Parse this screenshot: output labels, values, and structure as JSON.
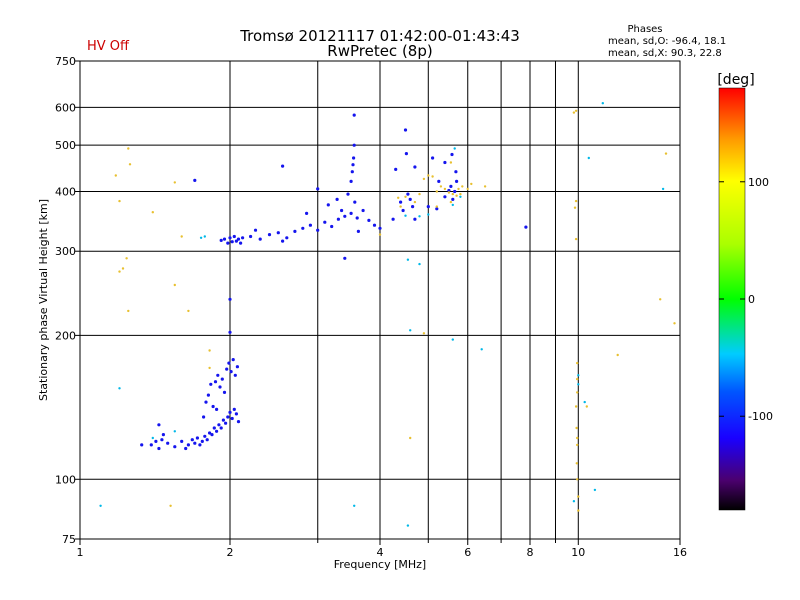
{
  "header": {
    "title_line1": "Tromsø 20121117 01:42:00-01:43:43",
    "title_line2": "RwPretec (8p)",
    "status": "HV Off",
    "status_color": "#cc0000",
    "phases_title": "Phases",
    "phases_o": "mean, sd,O: -96.4, 18.1",
    "phases_x": "mean, sd,X:  90.3, 22.8"
  },
  "colorbar": {
    "unit_label": "[deg]",
    "ticks": [
      {
        "label": "100",
        "value": 100
      },
      {
        "label": "0",
        "value": 0
      },
      {
        "label": "-100",
        "value": -100
      }
    ],
    "range": [
      -180,
      180
    ]
  },
  "chart_data": {
    "type": "scatter",
    "xlabel": "Frequency [MHz]",
    "ylabel": "Stationary phase Virtual Height [km]",
    "xscale": "log",
    "yscale": "log",
    "xlim": [
      1,
      16
    ],
    "ylim": [
      75,
      750
    ],
    "grid": true,
    "x_ticks": [
      {
        "value": 1,
        "label": "1"
      },
      {
        "value": 2,
        "label": "2"
      },
      {
        "value": 4,
        "label": "4"
      },
      {
        "value": 6,
        "label": "6"
      },
      {
        "value": 8,
        "label": "8"
      },
      {
        "value": 10,
        "label": "10"
      },
      {
        "value": 16,
        "label": "16"
      }
    ],
    "x_minor": [
      3,
      5,
      7,
      9
    ],
    "y_ticks": [
      {
        "value": 75,
        "label": "75"
      },
      {
        "value": 100,
        "label": "100"
      },
      {
        "value": 200,
        "label": "200"
      },
      {
        "value": 300,
        "label": "300"
      },
      {
        "value": 400,
        "label": "400"
      },
      {
        "value": 500,
        "label": "500"
      },
      {
        "value": 600,
        "label": "600"
      },
      {
        "value": 750,
        "label": "750"
      }
    ],
    "series": [
      {
        "points": [
          [
            1.39,
            118
          ],
          [
            1.42,
            120
          ],
          [
            1.44,
            116
          ],
          [
            1.46,
            121
          ],
          [
            1.5,
            119
          ],
          [
            1.55,
            117
          ],
          [
            1.6,
            120
          ],
          [
            1.63,
            116
          ],
          [
            1.65,
            118
          ],
          [
            1.68,
            121
          ],
          [
            1.7,
            119
          ],
          [
            1.72,
            122
          ],
          [
            1.74,
            118
          ],
          [
            1.76,
            120
          ],
          [
            1.78,
            123
          ],
          [
            1.8,
            121
          ],
          [
            1.82,
            125
          ],
          [
            1.84,
            124
          ],
          [
            1.86,
            128
          ],
          [
            1.88,
            126
          ],
          [
            1.9,
            130
          ],
          [
            1.92,
            128
          ],
          [
            1.94,
            133
          ],
          [
            1.96,
            131
          ],
          [
            1.98,
            135
          ],
          [
            2.0,
            138
          ],
          [
            2.02,
            134
          ],
          [
            2.04,
            140
          ],
          [
            2.06,
            137
          ],
          [
            2.08,
            132
          ],
          [
            1.77,
            135
          ],
          [
            1.79,
            145
          ],
          [
            1.81,
            150
          ],
          [
            1.83,
            158
          ],
          [
            1.87,
            160
          ],
          [
            1.89,
            165
          ],
          [
            1.91,
            156
          ],
          [
            1.93,
            162
          ],
          [
            1.95,
            152
          ],
          [
            1.97,
            170
          ],
          [
            1.99,
            175
          ],
          [
            2.01,
            168
          ],
          [
            2.03,
            178
          ],
          [
            2.05,
            165
          ],
          [
            2.07,
            172
          ],
          [
            1.44,
            130
          ],
          [
            1.47,
            124
          ],
          [
            1.33,
            118
          ],
          [
            1.88,
            140
          ],
          [
            1.85,
            142
          ],
          [
            1.92,
            316
          ],
          [
            1.95,
            318
          ],
          [
            1.98,
            312
          ],
          [
            2.0,
            320
          ],
          [
            2.02,
            314
          ],
          [
            2.04,
            322
          ],
          [
            2.06,
            315
          ],
          [
            2.08,
            318
          ],
          [
            2.1,
            312
          ],
          [
            2.12,
            320
          ],
          [
            2.2,
            322
          ],
          [
            2.3,
            318
          ],
          [
            2.4,
            325
          ],
          [
            2.5,
            328
          ],
          [
            2.6,
            320
          ],
          [
            2.7,
            330
          ],
          [
            2.8,
            335
          ],
          [
            2.9,
            340
          ],
          [
            3.0,
            332
          ],
          [
            3.1,
            345
          ],
          [
            3.2,
            338
          ],
          [
            3.3,
            350
          ],
          [
            3.4,
            355
          ],
          [
            3.5,
            360
          ],
          [
            3.6,
            352
          ],
          [
            3.7,
            365
          ],
          [
            3.8,
            348
          ],
          [
            3.9,
            340
          ],
          [
            4.0,
            335
          ],
          [
            2.25,
            332
          ],
          [
            2.55,
            315
          ],
          [
            2.85,
            360
          ],
          [
            3.0,
            405
          ],
          [
            3.15,
            375
          ],
          [
            3.35,
            365
          ],
          [
            3.45,
            395
          ],
          [
            3.5,
            420
          ],
          [
            3.52,
            440
          ],
          [
            3.54,
            470
          ],
          [
            3.55,
            500
          ],
          [
            3.53,
            455
          ],
          [
            3.56,
            380
          ],
          [
            3.28,
            385
          ],
          [
            3.62,
            330
          ],
          [
            3.4,
            290
          ],
          [
            3.55,
            578
          ],
          [
            4.3,
            445
          ],
          [
            4.5,
            538
          ],
          [
            4.52,
            480
          ],
          [
            4.4,
            380
          ],
          [
            4.45,
            365
          ],
          [
            4.55,
            395
          ],
          [
            4.6,
            385
          ],
          [
            4.65,
            372
          ],
          [
            4.7,
            350
          ],
          [
            5.0,
            372
          ],
          [
            5.2,
            368
          ],
          [
            5.4,
            390
          ],
          [
            5.5,
            402
          ],
          [
            5.55,
            410
          ],
          [
            5.6,
            385
          ],
          [
            5.65,
            400
          ],
          [
            5.7,
            420
          ],
          [
            5.68,
            440
          ],
          [
            5.58,
            478
          ],
          [
            5.25,
            420
          ],
          [
            5.1,
            470
          ],
          [
            2.0,
            238
          ],
          [
            2.55,
            452
          ],
          [
            2.0,
            203
          ],
          [
            1.7,
            422
          ],
          [
            4.25,
            350
          ],
          [
            7.85,
            337
          ],
          [
            4.7,
            450
          ],
          [
            5.4,
            460
          ]
        ]
      },
      {
        "points": [
          [
            1.75,
            320
          ],
          [
            1.78,
            322
          ],
          [
            4.55,
            288
          ],
          [
            4.8,
            282
          ],
          [
            5.65,
            492
          ],
          [
            5.8,
            390
          ],
          [
            4.8,
            355
          ],
          [
            5.0,
            358
          ],
          [
            4.6,
            205
          ],
          [
            6.4,
            187
          ],
          [
            5.6,
            196
          ],
          [
            1.2,
            155
          ],
          [
            1.4,
            122
          ],
          [
            1.55,
            126
          ],
          [
            4.55,
            80
          ],
          [
            1.1,
            88
          ],
          [
            10.8,
            95
          ],
          [
            9.8,
            90
          ],
          [
            10.5,
            470
          ],
          [
            11.2,
            612
          ],
          [
            14.8,
            405
          ],
          [
            3.55,
            88
          ],
          [
            10.0,
            165
          ],
          [
            10.0,
            158
          ],
          [
            10.3,
            145
          ],
          [
            4.5,
            356
          ],
          [
            5.6,
            375
          ]
        ]
      },
      {
        "points": [
          [
            1.18,
            432
          ],
          [
            1.2,
            382
          ],
          [
            1.25,
            492
          ],
          [
            1.26,
            456
          ],
          [
            1.4,
            362
          ],
          [
            1.22,
            276
          ],
          [
            1.24,
            290
          ],
          [
            1.2,
            272
          ],
          [
            1.25,
            225
          ],
          [
            1.55,
            418
          ],
          [
            1.6,
            322
          ],
          [
            1.55,
            255
          ],
          [
            1.65,
            225
          ],
          [
            1.82,
            186
          ],
          [
            1.82,
            171
          ],
          [
            1.52,
            88
          ],
          [
            4.6,
            122
          ],
          [
            4.9,
            202
          ],
          [
            4.9,
            425
          ],
          [
            5.0,
            432
          ],
          [
            5.1,
            430
          ],
          [
            5.2,
            400
          ],
          [
            5.3,
            410
          ],
          [
            5.4,
            405
          ],
          [
            5.5,
            398
          ],
          [
            5.55,
            380
          ],
          [
            5.6,
            395
          ],
          [
            5.7,
            392
          ],
          [
            5.75,
            405
          ],
          [
            5.8,
            395
          ],
          [
            5.85,
            410
          ],
          [
            6.0,
            405
          ],
          [
            6.1,
            415
          ],
          [
            6.5,
            410
          ],
          [
            4.4,
            372
          ],
          [
            4.5,
            390
          ],
          [
            4.35,
            388
          ],
          [
            4.7,
            380
          ],
          [
            4.8,
            395
          ],
          [
            9.8,
            585
          ],
          [
            9.9,
            590
          ],
          [
            9.9,
            382
          ],
          [
            9.85,
            370
          ],
          [
            9.9,
            318
          ],
          [
            9.95,
            175
          ],
          [
            9.95,
            162
          ],
          [
            9.95,
            152
          ],
          [
            9.9,
            142
          ],
          [
            9.92,
            128
          ],
          [
            9.95,
            122
          ],
          [
            9.95,
            118
          ],
          [
            9.93,
            108
          ],
          [
            9.95,
            100
          ],
          [
            10.0,
            92
          ],
          [
            10.0,
            86
          ],
          [
            10.4,
            142
          ],
          [
            12.0,
            182
          ],
          [
            14.6,
            238
          ],
          [
            15.6,
            212
          ],
          [
            15.0,
            480
          ],
          [
            4.0,
            325
          ],
          [
            5.55,
            460
          ],
          [
            5.2,
            372
          ]
        ]
      }
    ]
  }
}
